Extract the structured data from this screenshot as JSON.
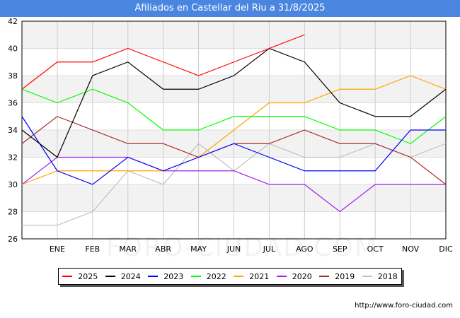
{
  "source": "http://www.foro-ciudad.com",
  "watermark": "FORO-CIUDAD.COM",
  "chart_data": {
    "type": "line",
    "title": "Afiliados en Castellar del Riu a 31/8/2025",
    "xlabel": "",
    "ylabel": "",
    "categories": [
      "",
      "ENE",
      "FEB",
      "MAR",
      "ABR",
      "MAY",
      "JUN",
      "JUL",
      "AGO",
      "SEP",
      "OCT",
      "NOV",
      "DIC"
    ],
    "ylim": [
      26,
      42
    ],
    "yticks": [
      26,
      28,
      30,
      32,
      34,
      36,
      38,
      40,
      42
    ],
    "grid": true,
    "legend_position": "bottom",
    "series": [
      {
        "name": "2025",
        "color": "#ff0000",
        "values": [
          37,
          39,
          39,
          40,
          39,
          38,
          39,
          40,
          41,
          null,
          null,
          null,
          null
        ]
      },
      {
        "name": "2024",
        "color": "#000000",
        "values": [
          34,
          32,
          38,
          39,
          37,
          37,
          38,
          40,
          39,
          36,
          35,
          35,
          37
        ]
      },
      {
        "name": "2023",
        "color": "#0000ff",
        "values": [
          35,
          31,
          30,
          32,
          31,
          32,
          33,
          32,
          31,
          31,
          31,
          34,
          34
        ]
      },
      {
        "name": "2022",
        "color": "#00ff00",
        "values": [
          37,
          36,
          37,
          36,
          34,
          34,
          35,
          35,
          35,
          34,
          34,
          33,
          35
        ]
      },
      {
        "name": "2021",
        "color": "#ffa500",
        "values": [
          30,
          31,
          31,
          31,
          31,
          32,
          34,
          36,
          36,
          37,
          37,
          38,
          37
        ]
      },
      {
        "name": "2020",
        "color": "#a020f0",
        "values": [
          30,
          32,
          32,
          32,
          31,
          31,
          31,
          30,
          30,
          28,
          30,
          30,
          30
        ]
      },
      {
        "name": "2019",
        "color": "#a52a2a",
        "values": [
          33,
          35,
          34,
          33,
          33,
          32,
          33,
          33,
          34,
          33,
          33,
          32,
          30
        ]
      },
      {
        "name": "2018",
        "color": "#c0c0c0",
        "values": [
          27,
          27,
          28,
          31,
          30,
          33,
          31,
          33,
          32,
          32,
          33,
          32,
          33
        ]
      }
    ]
  }
}
